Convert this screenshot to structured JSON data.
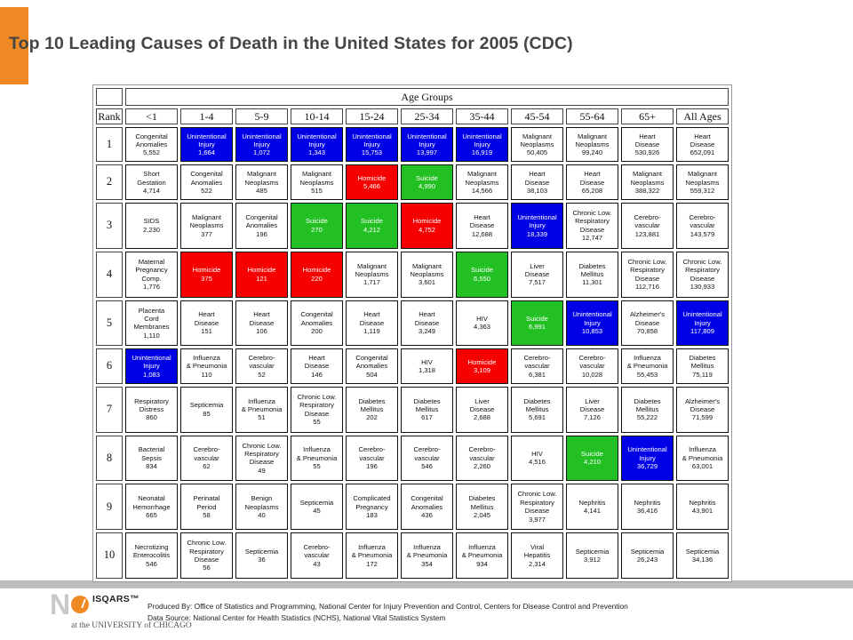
{
  "title": "Top 10 Leading Causes of Death in the United States for 2005 (CDC)",
  "colors": {
    "accent": "#f08a24",
    "blue": "#0000e6",
    "red": "#f70000",
    "green": "#22c022"
  },
  "table": {
    "group_header": "Age Groups",
    "rank_header": "Rank",
    "columns": [
      "<1",
      "1-4",
      "5-9",
      "10-14",
      "15-24",
      "25-34",
      "35-44",
      "45-54",
      "55-64",
      "65+",
      "All Ages"
    ],
    "rows": [
      {
        "rank": "1",
        "cells": [
          {
            "lines": [
              "Congenital",
              "Anomalies",
              "5,552"
            ],
            "color": ""
          },
          {
            "lines": [
              "Unintentional",
              "Injury",
              "1,664"
            ],
            "color": "blue"
          },
          {
            "lines": [
              "Unintentional",
              "Injury",
              "1,072"
            ],
            "color": "blue"
          },
          {
            "lines": [
              "Unintentional",
              "Injury",
              "1,343"
            ],
            "color": "blue"
          },
          {
            "lines": [
              "Unintentional",
              "Injury",
              "15,753"
            ],
            "color": "blue"
          },
          {
            "lines": [
              "Unintentional",
              "Injury",
              "13,997"
            ],
            "color": "blue"
          },
          {
            "lines": [
              "Unintentional",
              "Injury",
              "16,919"
            ],
            "color": "blue"
          },
          {
            "lines": [
              "Malignant",
              "Neoplasms",
              "50,405"
            ],
            "color": ""
          },
          {
            "lines": [
              "Malignant",
              "Neoplasms",
              "99,240"
            ],
            "color": ""
          },
          {
            "lines": [
              "Heart",
              "Disease",
              "530,926"
            ],
            "color": ""
          },
          {
            "lines": [
              "Heart",
              "Disease",
              "652,091"
            ],
            "color": ""
          }
        ]
      },
      {
        "rank": "2",
        "cells": [
          {
            "lines": [
              "Short",
              "Gestation",
              "4,714"
            ],
            "color": ""
          },
          {
            "lines": [
              "Congenital",
              "Anomalies",
              "522"
            ],
            "color": ""
          },
          {
            "lines": [
              "Malignant",
              "Neoplasms",
              "485"
            ],
            "color": ""
          },
          {
            "lines": [
              "Malignant",
              "Neoplasms",
              "515"
            ],
            "color": ""
          },
          {
            "lines": [
              "Homicide",
              "5,466"
            ],
            "color": "red"
          },
          {
            "lines": [
              "Suicide",
              "4,990"
            ],
            "color": "green"
          },
          {
            "lines": [
              "Malignant",
              "Neoplasms",
              "14,566"
            ],
            "color": ""
          },
          {
            "lines": [
              "Heart",
              "Disease",
              "38,103"
            ],
            "color": ""
          },
          {
            "lines": [
              "Heart",
              "Disease",
              "65,208"
            ],
            "color": ""
          },
          {
            "lines": [
              "Malignant",
              "Neoplasms",
              "388,322"
            ],
            "color": ""
          },
          {
            "lines": [
              "Malignant",
              "Neoplasms",
              "559,312"
            ],
            "color": ""
          }
        ]
      },
      {
        "rank": "3",
        "cells": [
          {
            "lines": [
              "SIDS",
              "2,230"
            ],
            "color": ""
          },
          {
            "lines": [
              "Malignant",
              "Neoplasms",
              "377"
            ],
            "color": ""
          },
          {
            "lines": [
              "Congenital",
              "Anomalies",
              "196"
            ],
            "color": ""
          },
          {
            "lines": [
              "Suicide",
              "270"
            ],
            "color": "green"
          },
          {
            "lines": [
              "Suicide",
              "4,212"
            ],
            "color": "green"
          },
          {
            "lines": [
              "Homicide",
              "4,752"
            ],
            "color": "red"
          },
          {
            "lines": [
              "Heart",
              "Disease",
              "12,688"
            ],
            "color": ""
          },
          {
            "lines": [
              "Unintentional",
              "Injury",
              "18,339"
            ],
            "color": "blue"
          },
          {
            "lines": [
              "Chronic Low.",
              "Respiratory",
              "Disease",
              "12,747"
            ],
            "color": ""
          },
          {
            "lines": [
              "Cerebro-",
              "vascular",
              "123,881"
            ],
            "color": ""
          },
          {
            "lines": [
              "Cerebro-",
              "vascular",
              "143,579"
            ],
            "color": ""
          }
        ]
      },
      {
        "rank": "4",
        "cells": [
          {
            "lines": [
              "Maternal",
              "Pregnancy",
              "Comp.",
              "1,776"
            ],
            "color": ""
          },
          {
            "lines": [
              "Homicide",
              "375"
            ],
            "color": "red"
          },
          {
            "lines": [
              "Homicide",
              "121"
            ],
            "color": "red"
          },
          {
            "lines": [
              "Homicide",
              "220"
            ],
            "color": "red"
          },
          {
            "lines": [
              "Malignant",
              "Neoplasms",
              "1,717"
            ],
            "color": ""
          },
          {
            "lines": [
              "Malignant",
              "Neoplasms",
              "3,601"
            ],
            "color": ""
          },
          {
            "lines": [
              "Suicide",
              "6,550"
            ],
            "color": "green"
          },
          {
            "lines": [
              "Liver",
              "Disease",
              "7,517"
            ],
            "color": ""
          },
          {
            "lines": [
              "Diabetes",
              "Mellitus",
              "11,301"
            ],
            "color": ""
          },
          {
            "lines": [
              "Chronic Low.",
              "Respiratory",
              "Disease",
              "112,716"
            ],
            "color": ""
          },
          {
            "lines": [
              "Chronic Low.",
              "Respiratory",
              "Disease",
              "130,933"
            ],
            "color": ""
          }
        ]
      },
      {
        "rank": "5",
        "cells": [
          {
            "lines": [
              "Placenta",
              "Cord",
              "Membranes",
              "1,110"
            ],
            "color": ""
          },
          {
            "lines": [
              "Heart",
              "Disease",
              "151"
            ],
            "color": ""
          },
          {
            "lines": [
              "Heart",
              "Disease",
              "106"
            ],
            "color": ""
          },
          {
            "lines": [
              "Congenital",
              "Anomalies",
              "200"
            ],
            "color": ""
          },
          {
            "lines": [
              "Heart",
              "Disease",
              "1,119"
            ],
            "color": ""
          },
          {
            "lines": [
              "Heart",
              "Disease",
              "3,249"
            ],
            "color": ""
          },
          {
            "lines": [
              "HIV",
              "4,363"
            ],
            "color": ""
          },
          {
            "lines": [
              "Suicide",
              "6,991"
            ],
            "color": "green"
          },
          {
            "lines": [
              "Unintentional",
              "Injury",
              "10,853"
            ],
            "color": "blue"
          },
          {
            "lines": [
              "Alzheimer's",
              "Disease",
              "70,858"
            ],
            "color": ""
          },
          {
            "lines": [
              "Unintentional",
              "Injury",
              "117,809"
            ],
            "color": "blue"
          }
        ]
      },
      {
        "rank": "6",
        "cells": [
          {
            "lines": [
              "Unintentional",
              "Injury",
              "1,083"
            ],
            "color": "blue"
          },
          {
            "lines": [
              "Influenza",
              "& Pneumonia",
              "110"
            ],
            "color": ""
          },
          {
            "lines": [
              "Cerebro-",
              "vascular",
              "52"
            ],
            "color": ""
          },
          {
            "lines": [
              "Heart",
              "Disease",
              "146"
            ],
            "color": ""
          },
          {
            "lines": [
              "Congenital",
              "Anomalies",
              "504"
            ],
            "color": ""
          },
          {
            "lines": [
              "HIV",
              "1,318"
            ],
            "color": ""
          },
          {
            "lines": [
              "Homicide",
              "3,109"
            ],
            "color": "red"
          },
          {
            "lines": [
              "Cerebro-",
              "vascular",
              "6,381"
            ],
            "color": ""
          },
          {
            "lines": [
              "Cerebro-",
              "vascular",
              "10,028"
            ],
            "color": ""
          },
          {
            "lines": [
              "Influenza",
              "& Pneumonia",
              "55,453"
            ],
            "color": ""
          },
          {
            "lines": [
              "Diabetes",
              "Mellitus",
              "75,119"
            ],
            "color": ""
          }
        ]
      },
      {
        "rank": "7",
        "cells": [
          {
            "lines": [
              "Respiratory",
              "Distress",
              "860"
            ],
            "color": ""
          },
          {
            "lines": [
              "Septicemia",
              "85"
            ],
            "color": ""
          },
          {
            "lines": [
              "Influenza",
              "& Pneumonia",
              "51"
            ],
            "color": ""
          },
          {
            "lines": [
              "Chronic Low.",
              "Respiratory",
              "Disease",
              "55"
            ],
            "color": ""
          },
          {
            "lines": [
              "Diabetes",
              "Mellitus",
              "202"
            ],
            "color": ""
          },
          {
            "lines": [
              "Diabetes",
              "Mellitus",
              "617"
            ],
            "color": ""
          },
          {
            "lines": [
              "Liver",
              "Disease",
              "2,688"
            ],
            "color": ""
          },
          {
            "lines": [
              "Diabetes",
              "Mellitus",
              "5,691"
            ],
            "color": ""
          },
          {
            "lines": [
              "Liver",
              "Disease",
              "7,126"
            ],
            "color": ""
          },
          {
            "lines": [
              "Diabetes",
              "Mellitus",
              "55,222"
            ],
            "color": ""
          },
          {
            "lines": [
              "Alzheimer's",
              "Disease",
              "71,599"
            ],
            "color": ""
          }
        ]
      },
      {
        "rank": "8",
        "cells": [
          {
            "lines": [
              "Bacterial",
              "Sepsis",
              "834"
            ],
            "color": ""
          },
          {
            "lines": [
              "Cerebro-",
              "vascular",
              "62"
            ],
            "color": ""
          },
          {
            "lines": [
              "Chronic Low.",
              "Respiratory",
              "Disease",
              "49"
            ],
            "color": ""
          },
          {
            "lines": [
              "Influenza",
              "& Pneumonia",
              "55"
            ],
            "color": ""
          },
          {
            "lines": [
              "Cerebro-",
              "vascular",
              "196"
            ],
            "color": ""
          },
          {
            "lines": [
              "Cerebro-",
              "vascular",
              "546"
            ],
            "color": ""
          },
          {
            "lines": [
              "Cerebro-",
              "vascular",
              "2,260"
            ],
            "color": ""
          },
          {
            "lines": [
              "HIV",
              "4,516"
            ],
            "color": ""
          },
          {
            "lines": [
              "Suicide",
              "4,210"
            ],
            "color": "green"
          },
          {
            "lines": [
              "Unintentional",
              "Injury",
              "36,729"
            ],
            "color": "blue"
          },
          {
            "lines": [
              "Influenza",
              "& Pneumonia",
              "63,001"
            ],
            "color": ""
          }
        ]
      },
      {
        "rank": "9",
        "cells": [
          {
            "lines": [
              "Neonatal",
              "Hemorrhage",
              "665"
            ],
            "color": ""
          },
          {
            "lines": [
              "Perinatal",
              "Period",
              "58"
            ],
            "color": ""
          },
          {
            "lines": [
              "Benign",
              "Neoplasms",
              "40"
            ],
            "color": ""
          },
          {
            "lines": [
              "Septicemia",
              "45"
            ],
            "color": ""
          },
          {
            "lines": [
              "Complicated",
              "Pregnancy",
              "183"
            ],
            "color": ""
          },
          {
            "lines": [
              "Congenital",
              "Anomalies",
              "436"
            ],
            "color": ""
          },
          {
            "lines": [
              "Diabetes",
              "Mellitus",
              "2,045"
            ],
            "color": ""
          },
          {
            "lines": [
              "Chronic Low.",
              "Respiratory",
              "Disease",
              "3,977"
            ],
            "color": ""
          },
          {
            "lines": [
              "Nephritis",
              "4,141"
            ],
            "color": ""
          },
          {
            "lines": [
              "Nephritis",
              "36,416"
            ],
            "color": ""
          },
          {
            "lines": [
              "Nephritis",
              "43,901"
            ],
            "color": ""
          }
        ]
      },
      {
        "rank": "10",
        "cells": [
          {
            "lines": [
              "Necrotizing",
              "Enterocolitis",
              "546"
            ],
            "color": ""
          },
          {
            "lines": [
              "Chronic Low.",
              "Respiratory",
              "Disease",
              "56"
            ],
            "color": ""
          },
          {
            "lines": [
              "Septicemia",
              "36"
            ],
            "color": ""
          },
          {
            "lines": [
              "Cerebro-",
              "vascular",
              "43"
            ],
            "color": ""
          },
          {
            "lines": [
              "Influenza",
              "& Pneumonia",
              "172"
            ],
            "color": ""
          },
          {
            "lines": [
              "Influenza",
              "& Pneumonia",
              "354"
            ],
            "color": ""
          },
          {
            "lines": [
              "Influenza",
              "& Pneumonia",
              "934"
            ],
            "color": ""
          },
          {
            "lines": [
              "Viral",
              "Hepatitis",
              "2,314"
            ],
            "color": ""
          },
          {
            "lines": [
              "Septicemia",
              "3,912"
            ],
            "color": ""
          },
          {
            "lines": [
              "Septicemia",
              "26,243"
            ],
            "color": ""
          },
          {
            "lines": [
              "Septicemia",
              "34,136"
            ],
            "color": ""
          }
        ]
      }
    ]
  },
  "footer": {
    "produced_by": "Produced By: Office of Statistics and Programming, National Center for Injury Prevention and Control, Centers for Disease Control and Prevention",
    "data_source": "Data Source: National Center for Health Statistics (NCHS), National Vital Statistics System"
  },
  "logo": {
    "n_letter": "N",
    "isqars": "ISQARS™",
    "affiliation": "at the UNIVERSITY of CHICAGO"
  }
}
